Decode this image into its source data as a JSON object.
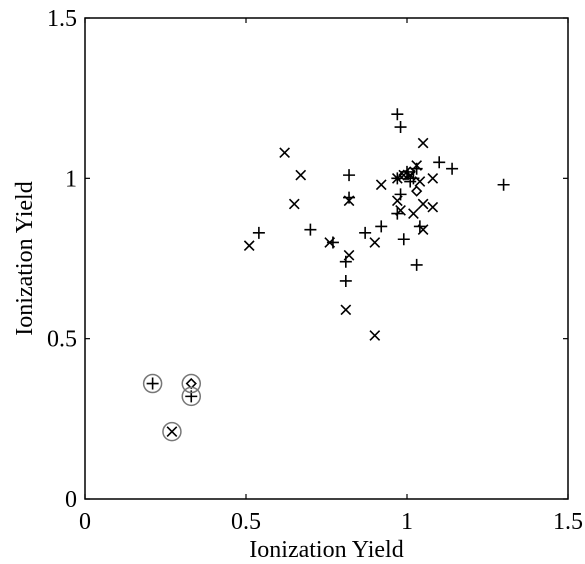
{
  "chart_data": {
    "type": "scatter",
    "title": "",
    "xlabel": "Ionization Yield",
    "ylabel": "Ionization Yield",
    "xlim": [
      0,
      1.5
    ],
    "ylim": [
      0,
      1.5
    ],
    "x_ticks": [
      "0",
      "0.5",
      "1",
      "1.5"
    ],
    "y_ticks": [
      "0",
      "0.5",
      "1",
      "1.5"
    ],
    "grid": false,
    "series": [
      {
        "marker": "plus",
        "points": [
          [
            0.54,
            0.83
          ],
          [
            0.7,
            0.84
          ],
          [
            0.77,
            0.8
          ],
          [
            0.81,
            0.74
          ],
          [
            0.81,
            0.68
          ],
          [
            0.82,
            1.01
          ],
          [
            0.82,
            0.94
          ],
          [
            0.87,
            0.83
          ],
          [
            0.92,
            0.85
          ],
          [
            0.97,
            1.2
          ],
          [
            0.98,
            1.16
          ],
          [
            0.97,
            1.0
          ],
          [
            0.97,
            0.89
          ],
          [
            0.99,
            0.81
          ],
          [
            0.98,
            0.95
          ],
          [
            1.0,
            1.02
          ],
          [
            1.01,
            0.99
          ],
          [
            1.02,
            1.0
          ],
          [
            1.03,
            1.03
          ],
          [
            1.03,
            0.73
          ],
          [
            1.04,
            0.85
          ],
          [
            1.1,
            1.05
          ],
          [
            1.14,
            1.03
          ],
          [
            1.3,
            0.98
          ],
          [
            0.21,
            0.36
          ],
          [
            0.33,
            0.32
          ]
        ]
      },
      {
        "marker": "x",
        "points": [
          [
            0.51,
            0.79
          ],
          [
            0.62,
            1.08
          ],
          [
            0.65,
            0.92
          ],
          [
            0.67,
            1.01
          ],
          [
            0.76,
            0.8
          ],
          [
            0.81,
            0.59
          ],
          [
            0.82,
            0.93
          ],
          [
            0.82,
            0.76
          ],
          [
            0.9,
            0.51
          ],
          [
            0.9,
            0.8
          ],
          [
            0.92,
            0.98
          ],
          [
            0.97,
            1.0
          ],
          [
            0.97,
            0.93
          ],
          [
            0.98,
            0.9
          ],
          [
            0.99,
            1.01
          ],
          [
            1.01,
            1.01
          ],
          [
            1.02,
            0.89
          ],
          [
            1.03,
            1.04
          ],
          [
            1.04,
            0.99
          ],
          [
            1.05,
            1.11
          ],
          [
            1.05,
            0.92
          ],
          [
            1.05,
            0.84
          ],
          [
            1.08,
            1.0
          ],
          [
            1.08,
            0.91
          ],
          [
            0.27,
            0.21
          ]
        ]
      },
      {
        "marker": "diamond",
        "points": [
          [
            0.99,
            1.01
          ],
          [
            1.01,
            1.02
          ],
          [
            1.03,
            0.96
          ],
          [
            0.33,
            0.36
          ]
        ]
      }
    ],
    "circled_points": [
      [
        0.21,
        0.36
      ],
      [
        0.33,
        0.36
      ],
      [
        0.33,
        0.32
      ],
      [
        0.27,
        0.21
      ]
    ]
  }
}
